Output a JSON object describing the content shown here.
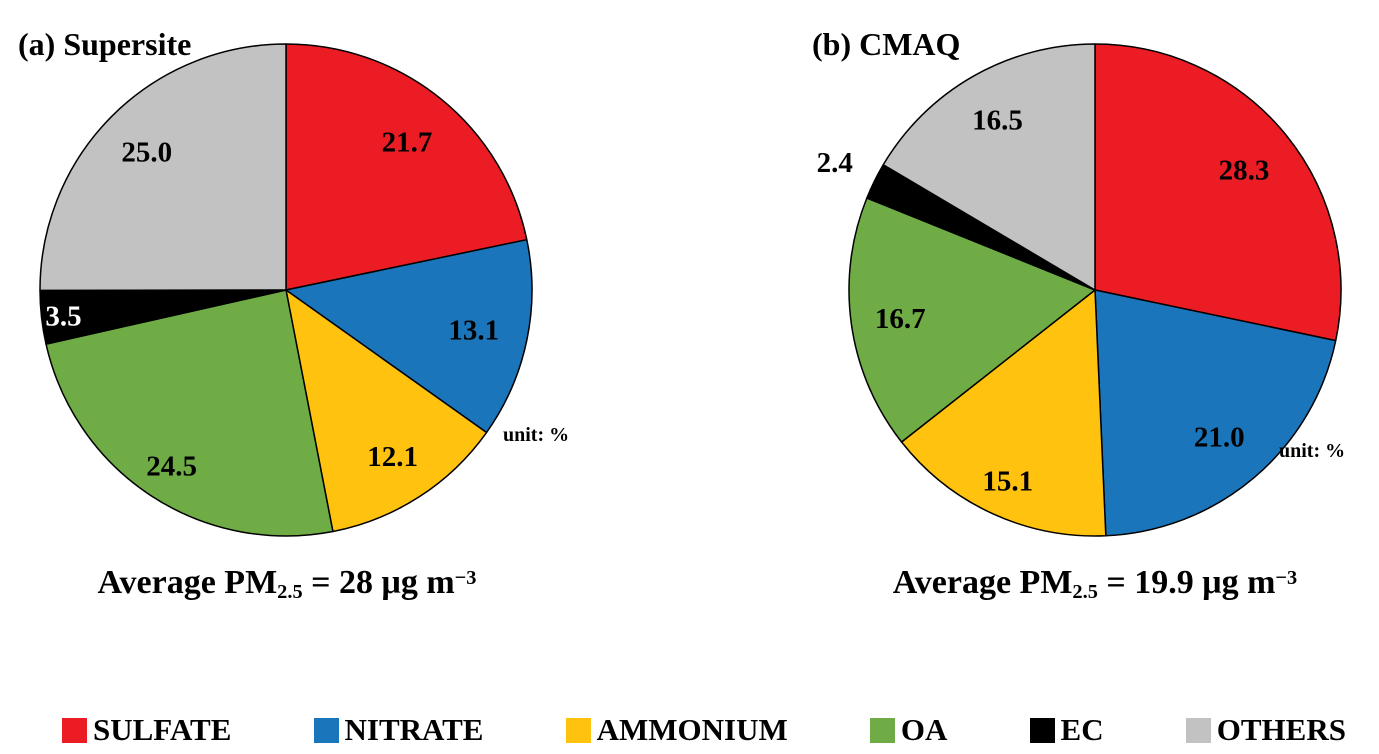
{
  "figure": {
    "unit_note": "unit: %"
  },
  "legend": {
    "position": "bottom",
    "items": [
      {
        "label": "SULFATE",
        "color": "#EB1C24"
      },
      {
        "label": "NITRATE",
        "color": "#1B75BB"
      },
      {
        "label": "AMMONIUM",
        "color": "#FFC20E"
      },
      {
        "label": "OA",
        "color": "#6FAC46"
      },
      {
        "label": "EC",
        "color": "#000000"
      },
      {
        "label": "OTHERS",
        "color": "#C2C2C2"
      }
    ]
  },
  "chart_data": [
    {
      "type": "pie",
      "panel": "a",
      "title": "(a) Supersite",
      "unit_label": "unit: %",
      "start_angle_deg": 0,
      "direction": "clockwise",
      "categories": [
        "SULFATE",
        "NITRATE",
        "AMMONIUM",
        "OA",
        "EC",
        "OTHERS"
      ],
      "values": [
        21.7,
        13.1,
        12.1,
        24.5,
        3.5,
        25.0
      ],
      "colors": [
        "#EB1C24",
        "#1B75BB",
        "#FFC20E",
        "#6FAC46",
        "#000000",
        "#C2C2C2"
      ],
      "label_colors": [
        "#000000",
        "#000000",
        "#000000",
        "#000000",
        "#FFFFFF",
        "#000000"
      ],
      "label_radius_frac": [
        0.78,
        0.78,
        0.8,
        0.85,
        0.91,
        0.8
      ],
      "caption": {
        "prefix": "Average PM",
        "sub": "2.5",
        "eq": " = ",
        "value": "28",
        "unit": " μg m",
        "exp": "−3"
      }
    },
    {
      "type": "pie",
      "panel": "b",
      "title": "(b) CMAQ",
      "unit_label": "unit: %",
      "start_angle_deg": 0,
      "direction": "clockwise",
      "categories": [
        "SULFATE",
        "NITRATE",
        "AMMONIUM",
        "OA",
        "EC",
        "OTHERS"
      ],
      "values": [
        28.3,
        21.0,
        15.1,
        16.7,
        2.4,
        16.5
      ],
      "colors": [
        "#EB1C24",
        "#1B75BB",
        "#FFC20E",
        "#6FAC46",
        "#000000",
        "#C2C2C2"
      ],
      "label_colors": [
        "#000000",
        "#000000",
        "#000000",
        "#000000",
        "#000000",
        "#000000"
      ],
      "label_radius_frac": [
        0.78,
        0.78,
        0.85,
        0.8,
        1.18,
        0.8
      ],
      "caption": {
        "prefix": "Average PM",
        "sub": "2.5",
        "eq": " = ",
        "value": "19.9",
        "unit": " μg m",
        "exp": "−3"
      }
    }
  ]
}
